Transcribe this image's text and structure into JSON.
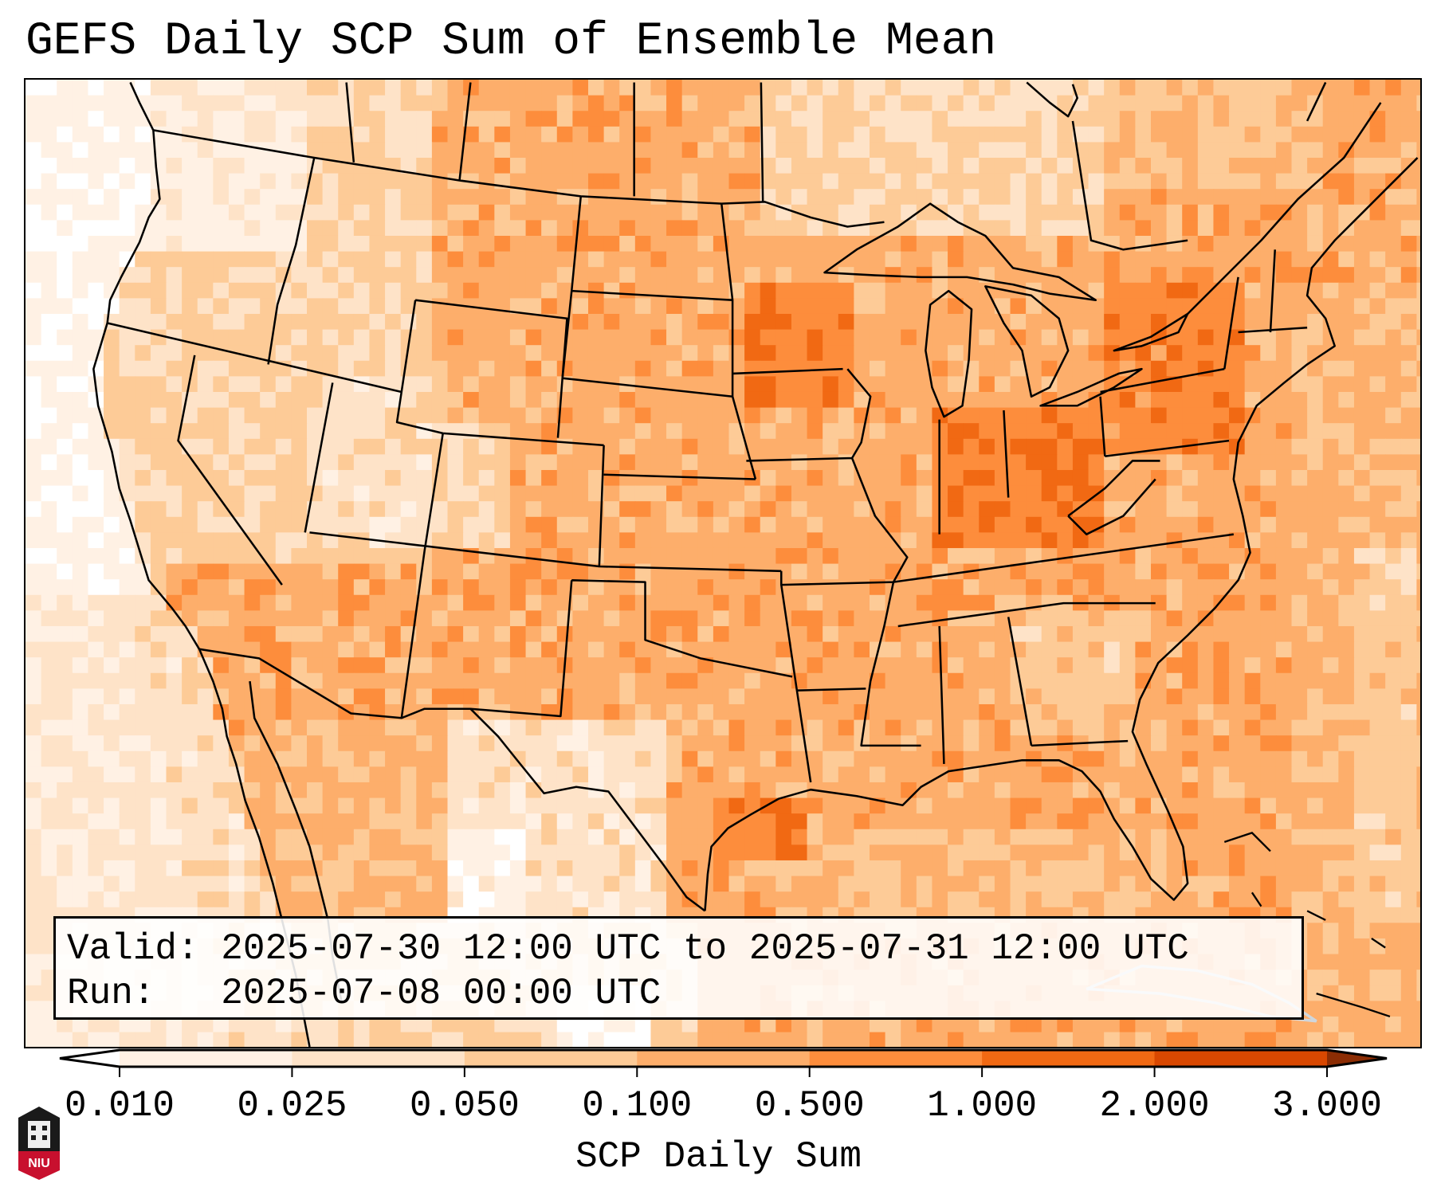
{
  "title": "GEFS Daily SCP Sum of Ensemble Mean",
  "legend": {
    "valid_line": "Valid: 2025-07-30 12:00 UTC to 2025-07-31 12:00 UTC",
    "run_line": "Run:   2025-07-08 00:00 UTC"
  },
  "colorbar": {
    "label": "SCP Daily Sum",
    "ticks": [
      "0.010",
      "0.025",
      "0.050",
      "0.100",
      "0.500",
      "1.000",
      "2.000",
      "3.000"
    ],
    "bin_colors": [
      "#fff1e4",
      "#fee3c8",
      "#fdcb97",
      "#fdae6b",
      "#fd8d3c",
      "#f16913",
      "#d94801"
    ],
    "under_color": "#ffffff",
    "over_color": "#8c2d04",
    "extend": "both"
  },
  "map": {
    "field_colors": [
      "#ffffff",
      "#fff1e4",
      "#fee3c8",
      "#fdcb97",
      "#fdae6b",
      "#fd8d3c",
      "#f16913"
    ],
    "boundary_color": "#000000"
  },
  "logo": {
    "text": "NIU",
    "colors": {
      "top": "#1a1a1a",
      "bottom": "#c8102e"
    }
  }
}
